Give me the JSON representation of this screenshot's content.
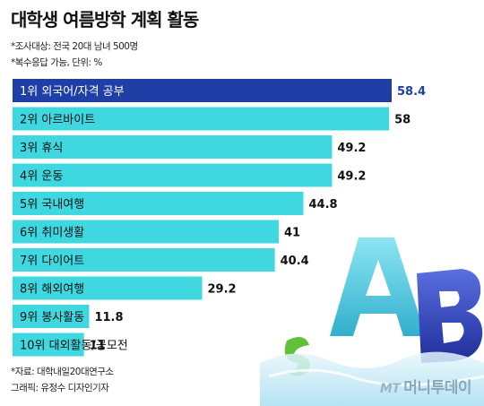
{
  "title": "대학생 여름방학 계획 활동",
  "notes": {
    "survey": "*조사대상: 전국 20대 남녀 500명",
    "unit": "*복수응답 가능, 단위: %"
  },
  "footer": {
    "source": "*자료: 대학내일20대연구소",
    "graphic": "그래픽: 유정수 디자인기자"
  },
  "brand": {
    "mt": "MT",
    "name": "머니투데이"
  },
  "colors": {
    "highlight_bar": "#1f3fa6",
    "bar": "#3fd8e0",
    "highlight_label": "#1f3fa6",
    "highlight_value": "#1f3fa6"
  },
  "chart_data": {
    "type": "bar",
    "orientation": "horizontal",
    "categories": [
      "1위 외국어/자격 공부",
      "2위 아르바이트",
      "3위 휴식",
      "4위 운동",
      "5위 국내여행",
      "6위 취미생활",
      "7위 다이어트",
      "8위 해외여행",
      "9위 봉사활동",
      "10위 대외활동/공모전"
    ],
    "values": [
      58.4,
      58,
      49.2,
      49.2,
      44.8,
      41,
      40.4,
      29.2,
      11.8,
      11
    ],
    "value_labels": [
      "58.4",
      "58",
      "49.2",
      "49.2",
      "44.8",
      "41",
      "40.4",
      "29.2",
      "11.8",
      "11"
    ],
    "highlight_index": 0,
    "xlim": [
      0,
      58.4
    ],
    "title": "대학생 여름방학 계획 활동",
    "xlabel": "",
    "ylabel": "",
    "grid": false,
    "legend": "none"
  }
}
